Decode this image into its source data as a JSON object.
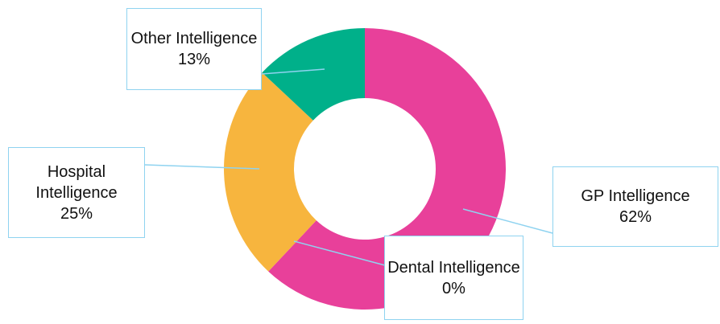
{
  "chart_data": {
    "type": "donut",
    "categories": [
      "GP Intelligence",
      "Dental Intelligence",
      "Hospital Intelligence",
      "Other Intelligence"
    ],
    "values": [
      62,
      0,
      25,
      13
    ],
    "value_labels": [
      "62%",
      "0%",
      "25%",
      "13%"
    ],
    "colors": [
      "#e8409a",
      "#a5a5a5",
      "#f7b53e",
      "#00b08a"
    ]
  }
}
